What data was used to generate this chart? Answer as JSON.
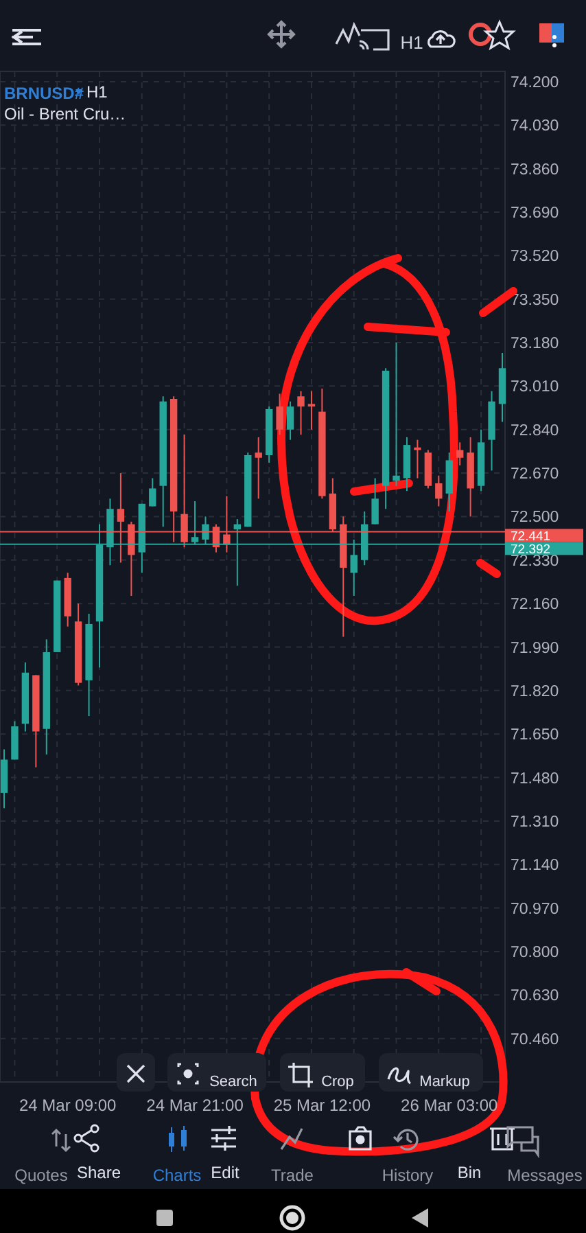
{
  "chart_data": {
    "type": "candlestick",
    "title": "BRNUSD#",
    "subtitle": "Oil - Brent Cru…",
    "categories": [
      null,
      null,
      null,
      null,
      null,
      null,
      "24 Mar 09:00",
      null,
      null,
      null,
      null,
      null,
      null,
      null,
      null,
      null,
      null,
      null,
      "24 Mar 21:00",
      null,
      null,
      null,
      null,
      null,
      null,
      null,
      null,
      null,
      null,
      null,
      "25 Mar 12:00",
      null,
      null,
      null,
      null,
      null,
      null,
      null,
      null,
      null,
      null,
      null,
      "26 Mar 03:00",
      null,
      null,
      null,
      null,
      null
    ],
    "ohlc": [
      [
        71.42,
        71.59,
        71.36,
        71.55
      ],
      [
        71.55,
        71.7,
        71.55,
        71.68
      ],
      [
        71.69,
        71.93,
        71.66,
        71.89
      ],
      [
        71.88,
        71.88,
        71.52,
        71.66
      ],
      [
        71.67,
        72.02,
        71.57,
        71.97
      ],
      [
        71.97,
        72.25,
        71.97,
        72.25
      ],
      [
        72.26,
        72.28,
        72.07,
        72.11
      ],
      [
        72.09,
        72.16,
        71.84,
        71.85
      ],
      [
        71.86,
        72.12,
        71.72,
        72.08
      ],
      [
        72.09,
        72.47,
        71.91,
        72.39
      ],
      [
        72.38,
        72.57,
        72.31,
        72.53
      ],
      [
        72.53,
        72.67,
        72.32,
        72.48
      ],
      [
        72.47,
        72.48,
        72.19,
        72.35
      ],
      [
        72.36,
        72.55,
        72.28,
        72.55
      ],
      [
        72.54,
        72.65,
        72.54,
        72.61
      ],
      [
        72.62,
        72.97,
        72.46,
        72.95
      ],
      [
        72.96,
        72.97,
        72.4,
        72.52
      ],
      [
        72.51,
        72.82,
        72.38,
        72.4
      ],
      [
        72.4,
        72.56,
        72.39,
        72.42
      ],
      [
        72.41,
        72.5,
        72.39,
        72.47
      ],
      [
        72.46,
        72.47,
        72.36,
        72.38
      ],
      [
        72.43,
        72.58,
        72.36,
        72.39
      ],
      [
        72.45,
        72.49,
        72.23,
        72.47
      ],
      [
        72.46,
        72.75,
        72.46,
        72.74
      ],
      [
        72.75,
        72.81,
        72.57,
        72.73
      ],
      [
        72.74,
        72.93,
        72.71,
        72.92
      ],
      [
        72.93,
        72.98,
        72.82,
        72.84
      ],
      [
        72.84,
        72.95,
        72.8,
        72.93
      ],
      [
        72.97,
        72.99,
        72.82,
        72.93
      ],
      [
        72.94,
        72.99,
        72.84,
        72.93
      ],
      [
        72.91,
        73.0,
        72.57,
        72.58
      ],
      [
        72.59,
        72.65,
        72.44,
        72.45
      ],
      [
        72.47,
        72.5,
        72.03,
        72.3
      ],
      [
        72.28,
        72.41,
        72.19,
        72.35
      ],
      [
        72.33,
        72.52,
        72.31,
        72.47
      ],
      [
        72.47,
        72.65,
        72.47,
        72.57
      ],
      [
        72.62,
        73.08,
        72.53,
        73.07
      ],
      [
        72.64,
        73.18,
        72.62,
        72.66
      ],
      [
        72.65,
        72.81,
        72.6,
        72.78
      ],
      [
        72.77,
        72.8,
        72.65,
        72.76
      ],
      [
        72.75,
        72.76,
        72.61,
        72.62
      ],
      [
        72.63,
        72.66,
        72.54,
        72.57
      ],
      [
        72.59,
        72.75,
        72.52,
        72.72
      ],
      [
        72.76,
        72.79,
        72.7,
        72.73
      ],
      [
        72.75,
        72.81,
        72.5,
        72.61
      ],
      [
        72.62,
        72.84,
        72.6,
        72.79
      ],
      [
        72.8,
        72.99,
        72.68,
        72.95
      ],
      [
        72.94,
        73.14,
        72.87,
        73.08
      ]
    ],
    "colors": [
      "#26a69a",
      "#26a69a",
      "#26a69a",
      "#ef5350",
      "#26a69a",
      "#26a69a",
      "#ef5350",
      "#ef5350",
      "#26a69a",
      "#26a69a",
      "#26a69a",
      "#ef5350",
      "#ef5350",
      "#26a69a",
      "#26a69a",
      "#26a69a",
      "#ef5350",
      "#ef5350",
      "#26a69a",
      "#26a69a",
      "#ef5350",
      "#ef5350",
      "#26a69a",
      "#26a69a",
      "#ef5350",
      "#26a69a",
      "#ef5350",
      "#26a69a",
      "#ef5350",
      "#ef5350",
      "#ef5350",
      "#ef5350",
      "#ef5350",
      "#26a69a",
      "#26a69a",
      "#26a69a",
      "#26a69a",
      "#26a69a",
      "#26a69a",
      "#ef5350",
      "#ef5350",
      "#ef5350",
      "#26a69a",
      "#ef5350",
      "#ef5350",
      "#26a69a",
      "#26a69a",
      "#26a69a"
    ],
    "ylim": [
      70.29,
      74.24
    ],
    "yticks": [
      {
        "value": 74.2,
        "label": "74.200"
      },
      {
        "value": 74.03,
        "label": "74.030"
      },
      {
        "value": 73.86,
        "label": "73.860"
      },
      {
        "value": 73.69,
        "label": "73.690"
      },
      {
        "value": 73.52,
        "label": "73.520"
      },
      {
        "value": 73.35,
        "label": "73.350"
      },
      {
        "value": 73.18,
        "label": "73.180"
      },
      {
        "value": 73.01,
        "label": "73.010"
      },
      {
        "value": 72.84,
        "label": "72.840"
      },
      {
        "value": 72.67,
        "label": "72.670"
      },
      {
        "value": 72.5,
        "label": "72.500"
      },
      {
        "value": 72.33,
        "label": "72.330"
      },
      {
        "value": 72.16,
        "label": "72.160"
      },
      {
        "value": 71.99,
        "label": "71.990"
      },
      {
        "value": 71.82,
        "label": "71.820"
      },
      {
        "value": 71.65,
        "label": "71.650"
      },
      {
        "value": 71.48,
        "label": "71.480"
      },
      {
        "value": 71.31,
        "label": "71.310"
      },
      {
        "value": 71.14,
        "label": "71.140"
      },
      {
        "value": 70.97,
        "label": "70.970"
      },
      {
        "value": 70.8,
        "label": "70.800"
      },
      {
        "value": 70.63,
        "label": "70.630"
      },
      {
        "value": 70.46,
        "label": "70.460"
      }
    ],
    "ref_lines": [
      {
        "axis": "y",
        "value": 72.441,
        "label": "72.441",
        "color": "#ef5350"
      },
      {
        "axis": "y",
        "value": 72.392,
        "label": "72.392",
        "color": "#26a69a"
      }
    ],
    "grid": true,
    "annotations": [
      "H1",
      "H1",
      "Search",
      "Crop",
      "Markup",
      "Quotes",
      "Share",
      "Charts",
      "Edit",
      "Trade",
      "History",
      "Bin",
      "Messages"
    ]
  }
}
